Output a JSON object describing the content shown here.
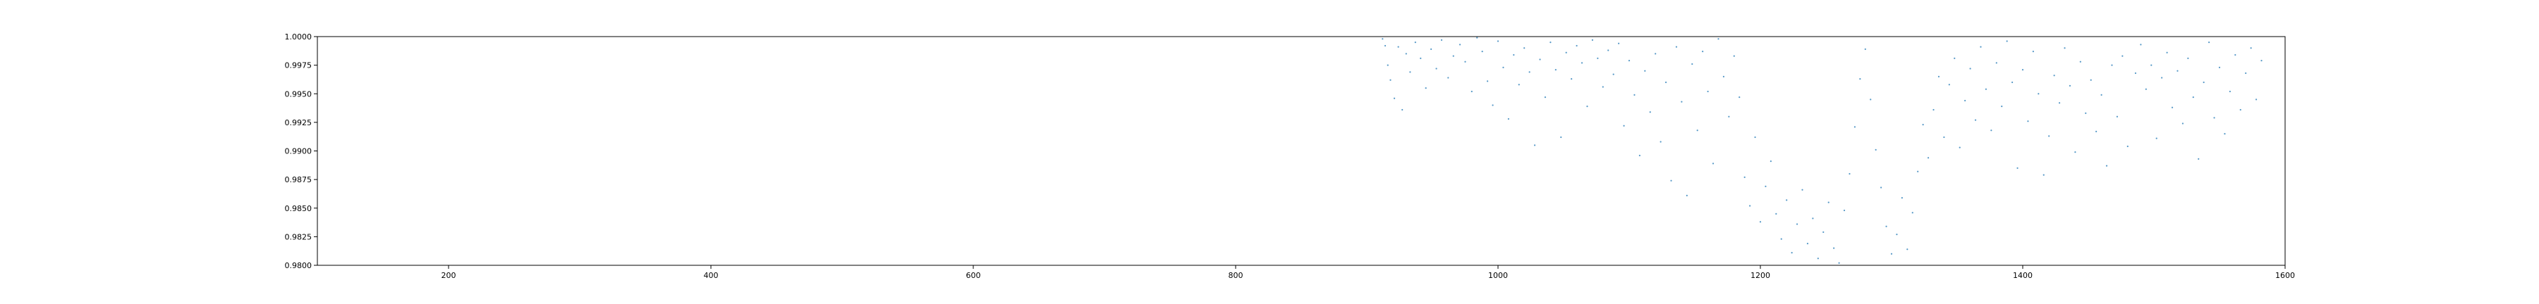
{
  "chart_data": {
    "type": "scatter",
    "title": "",
    "xlabel": "",
    "ylabel": "",
    "xlim": [
      100,
      1600
    ],
    "ylim": [
      0.98,
      1.0
    ],
    "xticks": [
      200,
      400,
      600,
      800,
      1000,
      1200,
      1400,
      1600
    ],
    "yticks": [
      0.98,
      0.9825,
      0.985,
      0.9875,
      0.99,
      0.9925,
      0.995,
      0.9975,
      1.0
    ],
    "xtick_labels": [
      "200",
      "400",
      "600",
      "800",
      "1000",
      "1200",
      "1400",
      "1600"
    ],
    "ytick_labels": [
      "0.9800",
      "0.9825",
      "0.9850",
      "0.9875",
      "0.9900",
      "0.9925",
      "0.9950",
      "0.9975",
      "1.0000"
    ],
    "grid": false,
    "marker_color": "#1f77b4",
    "marker_size_description": "tiny",
    "series": [
      {
        "points": [
          [
            912,
            0.9998
          ],
          [
            914,
            0.9992
          ],
          [
            916,
            0.9975
          ],
          [
            918,
            0.9962
          ],
          [
            921,
            0.9946
          ],
          [
            924,
            0.9991
          ],
          [
            927,
            0.9936
          ],
          [
            930,
            0.9985
          ],
          [
            933,
            0.9969
          ],
          [
            937,
            0.9995
          ],
          [
            941,
            0.9981
          ],
          [
            945,
            0.9955
          ],
          [
            949,
            0.9989
          ],
          [
            953,
            0.9972
          ],
          [
            957,
            0.9997
          ],
          [
            962,
            0.9964
          ],
          [
            966,
            0.9983
          ],
          [
            971,
            0.9993
          ],
          [
            975,
            0.9978
          ],
          [
            980,
            0.9952
          ],
          [
            984,
            0.9999
          ],
          [
            988,
            0.9987
          ],
          [
            992,
            0.9961
          ],
          [
            996,
            0.994
          ],
          [
            1000,
            0.9996
          ],
          [
            1004,
            0.9973
          ],
          [
            1008,
            0.9928
          ],
          [
            1012,
            0.9984
          ],
          [
            1016,
            0.9958
          ],
          [
            1020,
            0.999
          ],
          [
            1024,
            0.9969
          ],
          [
            1028,
            0.9905
          ],
          [
            1032,
            0.998
          ],
          [
            1036,
            0.9947
          ],
          [
            1040,
            0.9995
          ],
          [
            1044,
            0.9971
          ],
          [
            1048,
            0.9912
          ],
          [
            1052,
            0.9986
          ],
          [
            1056,
            0.9963
          ],
          [
            1060,
            0.9992
          ],
          [
            1064,
            0.9977
          ],
          [
            1068,
            0.9939
          ],
          [
            1072,
            0.9997
          ],
          [
            1076,
            0.9981
          ],
          [
            1080,
            0.9956
          ],
          [
            1084,
            0.9988
          ],
          [
            1088,
            0.9967
          ],
          [
            1092,
            0.9994
          ],
          [
            1096,
            0.9922
          ],
          [
            1100,
            0.9979
          ],
          [
            1104,
            0.9949
          ],
          [
            1108,
            0.9896
          ],
          [
            1112,
            0.997
          ],
          [
            1116,
            0.9934
          ],
          [
            1120,
            0.9985
          ],
          [
            1124,
            0.9908
          ],
          [
            1128,
            0.996
          ],
          [
            1132,
            0.9874
          ],
          [
            1136,
            0.9991
          ],
          [
            1140,
            0.9943
          ],
          [
            1144,
            0.9861
          ],
          [
            1148,
            0.9976
          ],
          [
            1152,
            0.9918
          ],
          [
            1156,
            0.9987
          ],
          [
            1160,
            0.9952
          ],
          [
            1164,
            0.9889
          ],
          [
            1168,
            0.9998
          ],
          [
            1172,
            0.9965
          ],
          [
            1176,
            0.993
          ],
          [
            1180,
            0.9983
          ],
          [
            1184,
            0.9947
          ],
          [
            1188,
            0.9877
          ],
          [
            1192,
            0.9852
          ],
          [
            1196,
            0.9912
          ],
          [
            1200,
            0.9838
          ],
          [
            1204,
            0.9869
          ],
          [
            1208,
            0.9891
          ],
          [
            1212,
            0.9845
          ],
          [
            1216,
            0.9823
          ],
          [
            1220,
            0.9857
          ],
          [
            1224,
            0.9811
          ],
          [
            1228,
            0.9836
          ],
          [
            1232,
            0.9866
          ],
          [
            1236,
            0.9819
          ],
          [
            1240,
            0.9841
          ],
          [
            1244,
            0.9806
          ],
          [
            1248,
            0.9829
          ],
          [
            1252,
            0.9855
          ],
          [
            1256,
            0.9815
          ],
          [
            1260,
            0.9802
          ],
          [
            1264,
            0.9848
          ],
          [
            1268,
            0.988
          ],
          [
            1272,
            0.9921
          ],
          [
            1276,
            0.9963
          ],
          [
            1280,
            0.9989
          ],
          [
            1284,
            0.9945
          ],
          [
            1288,
            0.9901
          ],
          [
            1292,
            0.9868
          ],
          [
            1296,
            0.9834
          ],
          [
            1300,
            0.981
          ],
          [
            1304,
            0.9827
          ],
          [
            1308,
            0.9859
          ],
          [
            1312,
            0.9814
          ],
          [
            1316,
            0.9846
          ],
          [
            1320,
            0.9882
          ],
          [
            1324,
            0.9923
          ],
          [
            1328,
            0.9894
          ],
          [
            1332,
            0.9936
          ],
          [
            1336,
            0.9965
          ],
          [
            1340,
            0.9912
          ],
          [
            1344,
            0.9958
          ],
          [
            1348,
            0.9981
          ],
          [
            1352,
            0.9903
          ],
          [
            1356,
            0.9944
          ],
          [
            1360,
            0.9972
          ],
          [
            1364,
            0.9927
          ],
          [
            1368,
            0.9991
          ],
          [
            1372,
            0.9954
          ],
          [
            1376,
            0.9918
          ],
          [
            1380,
            0.9977
          ],
          [
            1384,
            0.9939
          ],
          [
            1388,
            0.9996
          ],
          [
            1392,
            0.996
          ],
          [
            1396,
            0.9885
          ],
          [
            1400,
            0.9971
          ],
          [
            1404,
            0.9926
          ],
          [
            1408,
            0.9987
          ],
          [
            1412,
            0.995
          ],
          [
            1416,
            0.9879
          ],
          [
            1420,
            0.9913
          ],
          [
            1424,
            0.9966
          ],
          [
            1428,
            0.9942
          ],
          [
            1432,
            0.999
          ],
          [
            1436,
            0.9957
          ],
          [
            1440,
            0.9899
          ],
          [
            1444,
            0.9978
          ],
          [
            1448,
            0.9933
          ],
          [
            1452,
            0.9962
          ],
          [
            1456,
            0.9917
          ],
          [
            1460,
            0.9949
          ],
          [
            1464,
            0.9887
          ],
          [
            1468,
            0.9975
          ],
          [
            1472,
            0.993
          ],
          [
            1476,
            0.9983
          ],
          [
            1480,
            0.9904
          ],
          [
            1486,
            0.9968
          ],
          [
            1490,
            0.9993
          ],
          [
            1494,
            0.9954
          ],
          [
            1498,
            0.9975
          ],
          [
            1502,
            0.9911
          ],
          [
            1506,
            0.9964
          ],
          [
            1510,
            0.9986
          ],
          [
            1514,
            0.9938
          ],
          [
            1518,
            0.997
          ],
          [
            1522,
            0.9924
          ],
          [
            1526,
            0.9981
          ],
          [
            1530,
            0.9947
          ],
          [
            1534,
            0.9893
          ],
          [
            1538,
            0.996
          ],
          [
            1542,
            0.9995
          ],
          [
            1546,
            0.9929
          ],
          [
            1550,
            0.9973
          ],
          [
            1554,
            0.9915
          ],
          [
            1558,
            0.9952
          ],
          [
            1562,
            0.9984
          ],
          [
            1566,
            0.9936
          ],
          [
            1570,
            0.9968
          ],
          [
            1574,
            0.999
          ],
          [
            1578,
            0.9945
          ],
          [
            1582,
            0.9979
          ]
        ]
      }
    ]
  }
}
